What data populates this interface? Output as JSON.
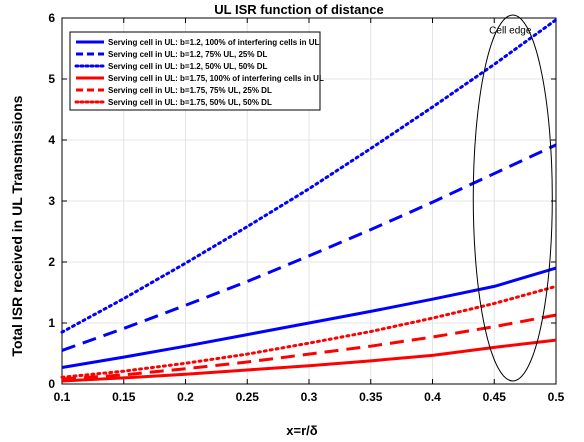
{
  "chart_data": {
    "type": "line",
    "title": "UL ISR function of distance",
    "xlabel": "x=r/δ",
    "ylabel": "Total ISR received in UL Transmissions",
    "xlim": [
      0.1,
      0.5
    ],
    "ylim": [
      0,
      6
    ],
    "xticks": [
      0.1,
      0.15,
      0.2,
      0.25,
      0.3,
      0.35,
      0.4,
      0.45,
      0.5
    ],
    "xtick_labels": [
      "0.1",
      "0.15",
      "0.2",
      "0.25",
      "0.3",
      "0.35",
      "0.4",
      "0.45",
      "0.5"
    ],
    "yticks": [
      0,
      1,
      2,
      3,
      4,
      5,
      6
    ],
    "ytick_labels": [
      "0",
      "1",
      "2",
      "3",
      "4",
      "5",
      "6"
    ],
    "grid": true,
    "legend_position": "top-left",
    "series": [
      {
        "name": "Serving cell in UL: b=1.2, 100% of interfering cells in UL",
        "color": "#0000ff",
        "linestyle": "solid",
        "x": [
          0.1,
          0.15,
          0.2,
          0.25,
          0.3,
          0.35,
          0.4,
          0.45,
          0.5
        ],
        "y": [
          0.27,
          0.44,
          0.62,
          0.81,
          1.0,
          1.19,
          1.39,
          1.6,
          1.9
        ]
      },
      {
        "name": "Serving cell in UL: b=1.2, 75% UL, 25% DL",
        "color": "#0000ff",
        "linestyle": "dashed",
        "x": [
          0.1,
          0.15,
          0.2,
          0.25,
          0.3,
          0.35,
          0.4,
          0.45,
          0.5
        ],
        "y": [
          0.55,
          0.91,
          1.29,
          1.68,
          2.1,
          2.53,
          2.98,
          3.45,
          3.92
        ]
      },
      {
        "name": "Serving cell in UL: b=1.2, 50% UL, 50% DL",
        "color": "#0000ff",
        "linestyle": "dotted",
        "x": [
          0.1,
          0.15,
          0.2,
          0.25,
          0.3,
          0.35,
          0.4,
          0.45,
          0.5
        ],
        "y": [
          0.85,
          1.4,
          1.98,
          2.58,
          3.2,
          3.86,
          4.54,
          5.24,
          5.97
        ]
      },
      {
        "name": "Serving cell in UL: b=1.75, 100% of interfering cells in UL",
        "color": "#ff0000",
        "linestyle": "solid",
        "x": [
          0.1,
          0.15,
          0.2,
          0.25,
          0.3,
          0.35,
          0.4,
          0.45,
          0.5
        ],
        "y": [
          0.05,
          0.1,
          0.16,
          0.23,
          0.3,
          0.38,
          0.47,
          0.6,
          0.72
        ]
      },
      {
        "name": "Serving cell in UL: b=1.75, 75% UL, 25% DL",
        "color": "#ff0000",
        "linestyle": "dashed",
        "x": [
          0.1,
          0.15,
          0.2,
          0.25,
          0.3,
          0.35,
          0.4,
          0.45,
          0.5
        ],
        "y": [
          0.08,
          0.15,
          0.25,
          0.36,
          0.49,
          0.62,
          0.77,
          0.94,
          1.13
        ]
      },
      {
        "name": "Serving cell in UL: b=1.75, 50% UL, 50% DL",
        "color": "#ff0000",
        "linestyle": "dotted",
        "x": [
          0.1,
          0.15,
          0.2,
          0.25,
          0.3,
          0.35,
          0.4,
          0.45,
          0.5
        ],
        "y": [
          0.11,
          0.21,
          0.34,
          0.49,
          0.67,
          0.86,
          1.08,
          1.32,
          1.6
        ]
      }
    ],
    "annotations": [
      {
        "text": "Cell edge",
        "x": 0.463,
        "y": 5.75
      },
      {
        "type": "ellipse",
        "center_x": 0.465,
        "center_y": 3.05,
        "radius_x": 0.032,
        "radius_y": 3.0
      }
    ]
  }
}
